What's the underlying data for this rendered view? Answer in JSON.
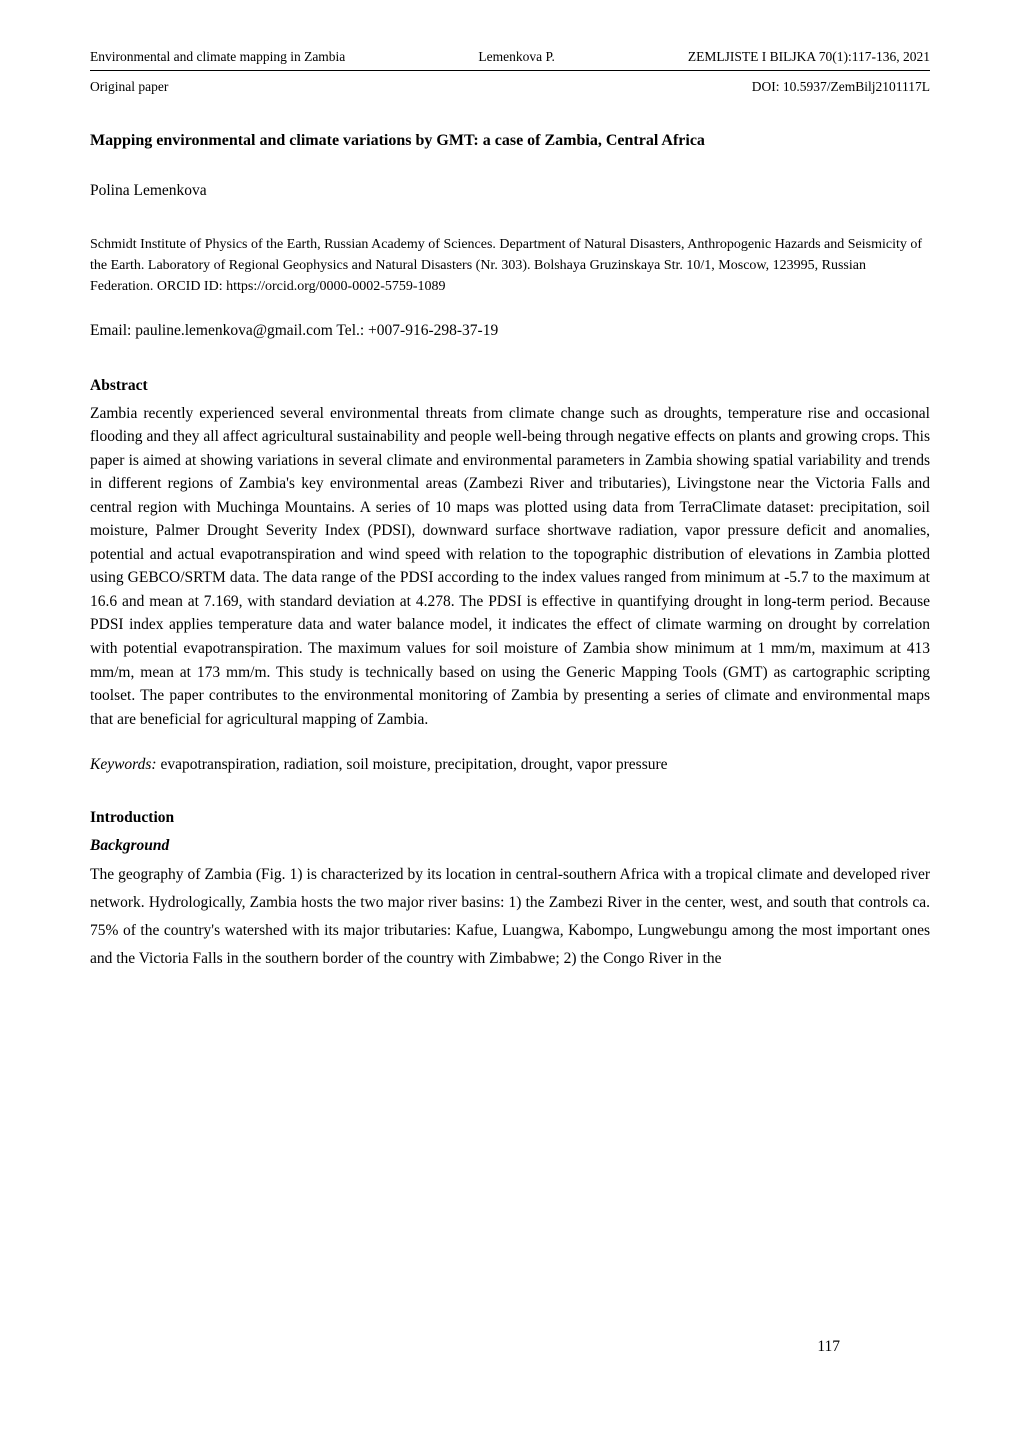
{
  "header": {
    "running_title": "Environmental and climate mapping in Zambia",
    "author_short": "Lemenkova P.",
    "journal_ref": "ZEMLJISTE I BILJKA 70(1):117-136, 2021",
    "paper_type": "Original paper",
    "doi": "DOI: 10.5937/ZemBilj2101117L"
  },
  "title": "Mapping environmental and climate variations by GMT: a case of Zambia, Central Africa",
  "author": "Polina Lemenkova",
  "affiliation": "Schmidt Institute of Physics of the Earth, Russian Academy of Sciences. Department of Natural Disasters, Anthropogenic Hazards and Seismicity of the Earth. Laboratory of Regional Geophysics and Natural Disasters (Nr. 303). Bolshaya Gruzinskaya Str. 10/1, Moscow, 123995, Russian Federation. ORCID ID: https://orcid.org/0000-0002-5759-1089",
  "contact": "Email: pauline.lemenkova@gmail.com Tel.: +007-916-298-37-19",
  "abstract": {
    "heading": "Abstract",
    "body": "Zambia recently experienced several environmental threats from climate change such as droughts, temperature rise and occasional flooding and they all affect agricultural sustainability and people well-being through negative effects on plants and growing crops. This paper is aimed at showing variations in several climate and environmental parameters in Zambia showing spatial variability and trends in different regions of Zambia's key environmental areas (Zambezi River and tributaries), Livingstone near the Victoria Falls and central region with Muchinga Mountains. A series of 10 maps was plotted using data from TerraClimate dataset: precipitation, soil moisture, Palmer Drought Severity Index (PDSI), downward surface shortwave radiation, vapor pressure deficit and anomalies, potential and actual evapotranspiration and wind speed with relation to the topographic distribution of elevations in Zambia plotted using GEBCO/SRTM data. The data range of the PDSI according to the index values ranged from minimum at -5.7 to the maximum at 16.6 and mean at 7.169, with standard deviation at 4.278. The PDSI is effective in quantifying drought in long-term period. Because PDSI index applies temperature data and water balance model, it indicates the effect of climate warming on drought by correlation with potential evapotranspiration. The maximum values for soil moisture of Zambia show minimum at 1 mm/m, maximum at 413 mm/m, mean at 173 mm/m. This study is technically based on using the Generic Mapping Tools (GMT) as cartographic scripting toolset. The paper contributes to the environmental monitoring of Zambia by presenting a series of climate and environmental maps that are beneficial for agricultural mapping of Zambia."
  },
  "keywords": {
    "label": "Keywords:",
    "text": " evapotranspiration, radiation, soil moisture, precipitation, drought, vapor pressure"
  },
  "introduction": {
    "heading": "Introduction",
    "subheading": "Background",
    "body": "The geography of Zambia (Fig. 1) is characterized by its location in central-southern Africa with a tropical climate and developed river network. Hydrologically, Zambia hosts the two major river basins: 1) the Zambezi River in the center, west, and south that controls ca. 75% of the country's watershed with its major tributaries: Kafue, Luangwa, Kabompo, Lungwebungu among the most important ones and the Victoria Falls in the southern border of the country with Zimbabwe; 2) the Congo River in the"
  },
  "page_number": "117"
}
